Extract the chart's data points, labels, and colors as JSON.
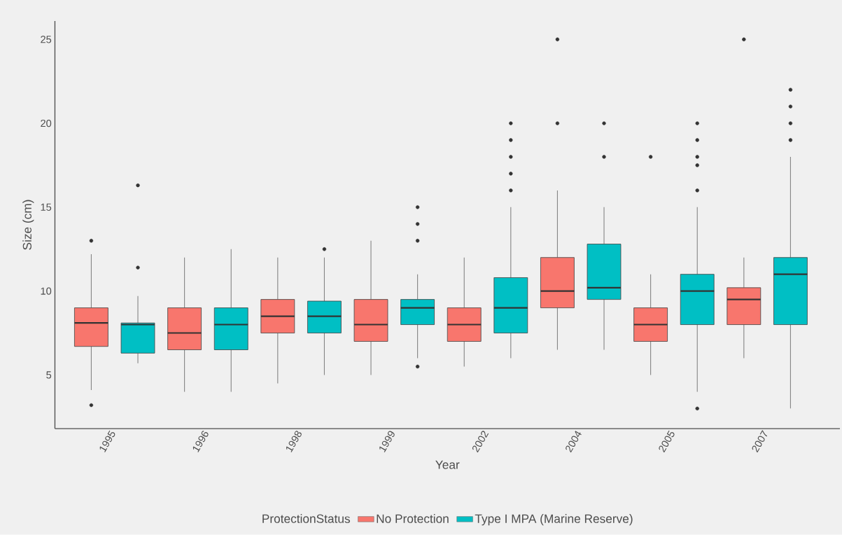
{
  "chart_data": {
    "type": "box",
    "xlabel": "Year",
    "ylabel": "Size (cm)",
    "legend_title": "ProtectionStatus",
    "categories": [
      "1995",
      "1996",
      "1998",
      "1999",
      "2002",
      "2004",
      "2005",
      "2007"
    ],
    "ylim": [
      1.8,
      26.1
    ],
    "yticks": [
      5,
      10,
      15,
      20,
      25
    ],
    "grid": false,
    "legend": "bottom",
    "series": [
      {
        "name": "No Protection",
        "color": "#f8766d",
        "boxes": [
          {
            "low": 4.1,
            "q1": 6.7,
            "median": 8.1,
            "q3": 9,
            "high": 12.2,
            "outliers": [
              13,
              3.2
            ]
          },
          {
            "low": 4,
            "q1": 6.5,
            "median": 7.5,
            "q3": 9,
            "high": 12
          },
          {
            "low": 4.5,
            "q1": 7.5,
            "median": 8.5,
            "q3": 9.5,
            "high": 12
          },
          {
            "low": 5,
            "q1": 7,
            "median": 8,
            "q3": 9.5,
            "high": 13
          },
          {
            "low": 5.5,
            "q1": 7,
            "median": 8,
            "q3": 9,
            "high": 12
          },
          {
            "low": 6.5,
            "q1": 9,
            "median": 10,
            "q3": 12,
            "high": 16,
            "outliers": [
              20,
              25
            ]
          },
          {
            "low": 5,
            "q1": 7,
            "median": 8,
            "q3": 9,
            "high": 11,
            "outliers": [
              18
            ]
          },
          {
            "low": 6,
            "q1": 8,
            "median": 9.5,
            "q3": 10.2,
            "high": 12,
            "outliers": [
              25
            ]
          }
        ]
      },
      {
        "name": "Type I MPA (Marine Reserve)",
        "color": "#00bfc4",
        "boxes": [
          {
            "low": 5.7,
            "q1": 6.3,
            "median": 8,
            "q3": 8.1,
            "high": 9.7,
            "outliers": [
              16.3,
              11.4
            ]
          },
          {
            "low": 4,
            "q1": 6.5,
            "median": 8,
            "q3": 9,
            "high": 12.5
          },
          {
            "low": 5,
            "q1": 7.5,
            "median": 8.5,
            "q3": 9.4,
            "high": 12,
            "outliers": [
              12.5
            ]
          },
          {
            "low": 6,
            "q1": 8,
            "median": 9,
            "q3": 9.5,
            "high": 11,
            "outliers": [
              15,
              14,
              13,
              5.5
            ]
          },
          {
            "low": 6,
            "q1": 7.5,
            "median": 9,
            "q3": 10.8,
            "high": 15,
            "outliers": [
              16,
              17,
              18,
              19,
              20
            ]
          },
          {
            "low": 6.5,
            "q1": 9.5,
            "median": 10.2,
            "q3": 12.8,
            "high": 15,
            "outliers": [
              18,
              20
            ]
          },
          {
            "low": 4,
            "q1": 8,
            "median": 10,
            "q3": 11,
            "high": 15,
            "outliers": [
              16,
              17.5,
              18,
              19,
              20,
              3
            ]
          },
          {
            "low": 3,
            "q1": 8,
            "median": 11,
            "q3": 12,
            "high": 18,
            "outliers": [
              19,
              20,
              21,
              22
            ]
          }
        ]
      }
    ]
  }
}
